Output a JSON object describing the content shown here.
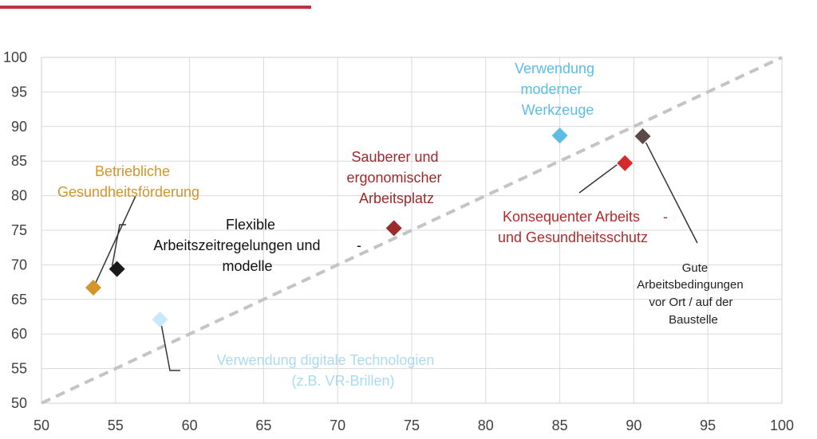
{
  "accent_color": "#c0313f",
  "chart_data": {
    "type": "scatter",
    "title": "",
    "xlabel": "",
    "ylabel": "",
    "xlim": [
      50,
      100
    ],
    "ylim": [
      50,
      100
    ],
    "xticks": [
      "50",
      "55",
      "60",
      "65",
      "70",
      "75",
      "80",
      "85",
      "90",
      "95",
      "100"
    ],
    "yticks": [
      "50",
      "55",
      "60",
      "65",
      "70",
      "75",
      "80",
      "85",
      "90",
      "95",
      "100"
    ],
    "grid": true,
    "diagonal_reference_line": true,
    "marker": "diamond",
    "points": [
      {
        "name": "betriebliche",
        "x": 53.5,
        "y": 66.7,
        "color": "#d4952b",
        "label_lines": [
          "Betriebliche",
          "Gesundheitsförderung"
        ]
      },
      {
        "name": "flexible",
        "x": 55.1,
        "y": 69.4,
        "color": "#1a1a1a",
        "label_lines": [
          "Flexible",
          "Arbeitszeitregelungen und",
          "modelle"
        ],
        "label_extra": "-"
      },
      {
        "name": "digital",
        "x": 58.0,
        "y": 62.1,
        "color": "#c9e9f6",
        "label_lines": [
          "Verwendung digitale Technologien",
          "(z.B. VR-Brillen)"
        ]
      },
      {
        "name": "sauberer",
        "x": 73.8,
        "y": 75.3,
        "color": "#9c2a2a",
        "label_lines": [
          "Sauberer und",
          "ergonomischer",
          "Arbeitsplatz"
        ]
      },
      {
        "name": "werkzeuge",
        "x": 85.0,
        "y": 88.7,
        "color": "#5bbde6",
        "label_lines": [
          "Verwendung",
          "moderner",
          "Werkzeuge"
        ]
      },
      {
        "name": "konsequenter",
        "x": 89.4,
        "y": 84.7,
        "color": "#d42a2a",
        "label_lines": [
          "Konsequenter Arbeits",
          "und Gesundheitsschutz"
        ],
        "label_extra": "-"
      },
      {
        "name": "gute",
        "x": 90.6,
        "y": 88.6,
        "color": "#5a4b49",
        "label_lines": [
          "Gute",
          "Arbeitsbedingungen",
          "vor Ort / auf der",
          "Baustelle"
        ]
      }
    ]
  }
}
